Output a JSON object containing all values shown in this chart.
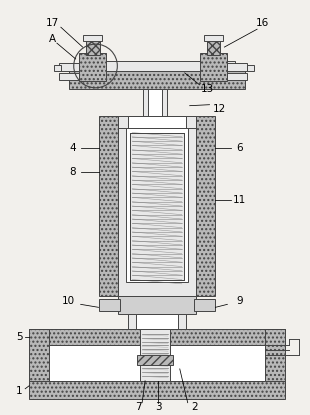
{
  "bg": "#f2f0ec",
  "lc": "#444444",
  "hatch_fc": "#b8b8b8",
  "mid_fc": "#d0d0d0",
  "light_fc": "#e8e8e8",
  "white_fc": "#ffffff",
  "lw": 0.7,
  "fig_w": 3.1,
  "fig_h": 4.15,
  "dpi": 100
}
